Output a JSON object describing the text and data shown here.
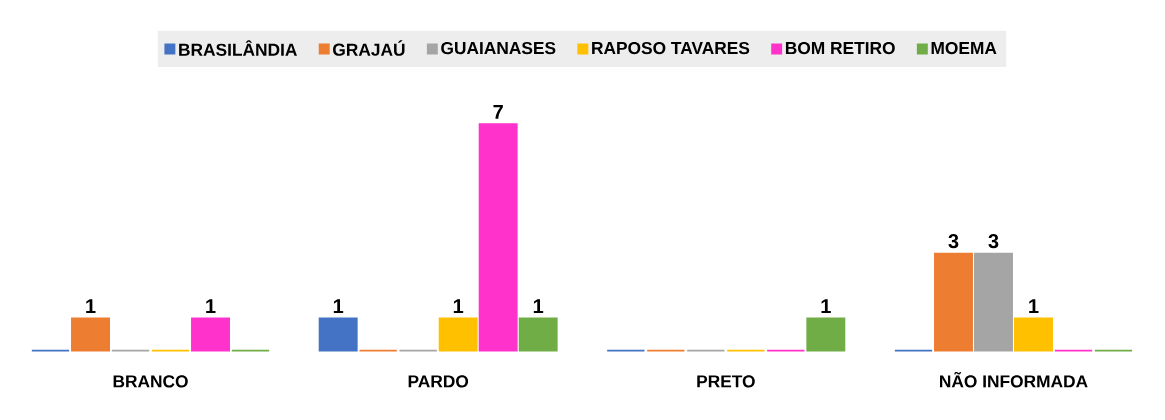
{
  "chart_data": {
    "type": "bar",
    "categories": [
      "BRANCO",
      "PARDO",
      "PRETO",
      "NÃO INFORMADA"
    ],
    "series": [
      {
        "name": "BRASILÂNDIA",
        "color": "#4472c4",
        "values": [
          0,
          1,
          0,
          0
        ],
        "value_labels": [
          null,
          "1",
          null,
          null
        ]
      },
      {
        "name": "GRAJAÚ",
        "color": "#ed7d31",
        "values": [
          1,
          0,
          0,
          3
        ],
        "value_labels": [
          "1",
          null,
          null,
          "3"
        ]
      },
      {
        "name": "GUAIANASES",
        "color": "#a5a5a5",
        "values": [
          0,
          0,
          0,
          3
        ],
        "value_labels": [
          null,
          null,
          null,
          "3"
        ]
      },
      {
        "name": "RAPOSO TAVARES",
        "color": "#ffc000",
        "values": [
          0,
          1,
          0,
          1
        ],
        "value_labels": [
          null,
          "1",
          null,
          "1"
        ]
      },
      {
        "name": "BOM RETIRO",
        "color": "#ff33cc",
        "values": [
          1,
          7,
          0,
          0
        ],
        "value_labels": [
          "1",
          "7",
          null,
          null
        ]
      },
      {
        "name": "MOEMA",
        "color": "#70ad47",
        "values": [
          0,
          1,
          1,
          0
        ],
        "value_labels": [
          null,
          "1",
          "1",
          null
        ]
      }
    ],
    "tick_labels": "x",
    "legend": "top"
  }
}
